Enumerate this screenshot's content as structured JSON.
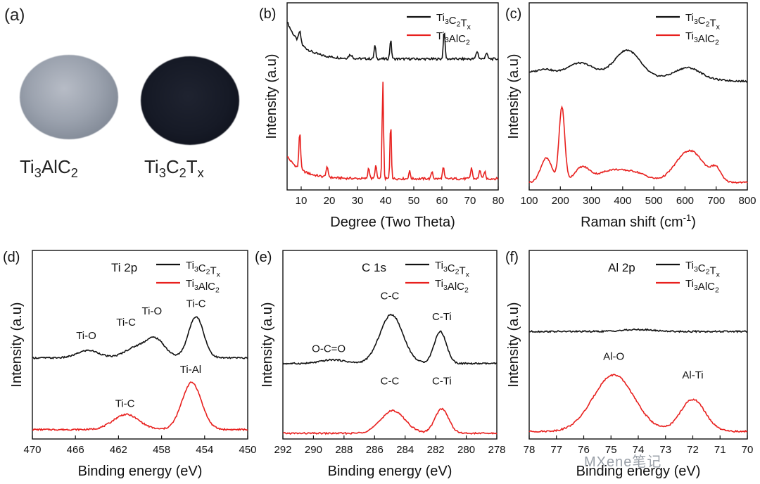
{
  "photo": {
    "letter": "(a)",
    "left_label": "Ti3AlC2",
    "right_label": "Ti3C2Tx"
  },
  "colors": {
    "ti3c2tx": "#111111",
    "ti3alc2": "#e8201e"
  },
  "watermark": "MXene笔记",
  "chart_data": [
    {
      "id": "b",
      "letter": "(b)",
      "type": "line",
      "xlabel": "Degree (Two Theta)",
      "ylabel": "Intensity (a.u)",
      "xlim": [
        5,
        80
      ],
      "xticks": [
        10,
        20,
        30,
        40,
        50,
        60,
        70,
        80
      ],
      "legend": [
        "Ti3C2Tx",
        "Ti3AlC2"
      ],
      "legend_position": "top-right",
      "series": [
        {
          "name": "Ti3C2Tx",
          "color": "#111111",
          "baseline": 0.7,
          "decay": 0.2,
          "peaks": [
            [
              9.5,
              0.06,
              0.4
            ],
            [
              27.5,
              0.02,
              0.6
            ],
            [
              36.2,
              0.07,
              0.3
            ],
            [
              41.8,
              0.1,
              0.3
            ],
            [
              60.8,
              0.15,
              0.3
            ],
            [
              72.5,
              0.04,
              0.4
            ],
            [
              75.8,
              0.03,
              0.4
            ]
          ]
        },
        {
          "name": "Ti3AlC2",
          "color": "#e8201e",
          "baseline": 0.06,
          "decay": 0.12,
          "peaks": [
            [
              9.5,
              0.2,
              0.3
            ],
            [
              19.2,
              0.05,
              0.4
            ],
            [
              34.0,
              0.06,
              0.3
            ],
            [
              36.5,
              0.07,
              0.3
            ],
            [
              39.0,
              0.52,
              0.25
            ],
            [
              41.8,
              0.3,
              0.25
            ],
            [
              48.5,
              0.04,
              0.3
            ],
            [
              56.5,
              0.04,
              0.3
            ],
            [
              60.5,
              0.06,
              0.3
            ],
            [
              70.5,
              0.06,
              0.3
            ],
            [
              73.5,
              0.05,
              0.3
            ],
            [
              75.2,
              0.04,
              0.3
            ]
          ]
        }
      ]
    },
    {
      "id": "c",
      "letter": "(c)",
      "type": "line",
      "xlabel": "Raman shift (cm-1)",
      "ylabel": "Intensity (a.u)",
      "xlim": [
        100,
        800
      ],
      "xticks": [
        100,
        200,
        300,
        400,
        500,
        600,
        700,
        800
      ],
      "legend": [
        "Ti3C2Tx",
        "Ti3AlC2"
      ],
      "legend_position": "top-right",
      "series": [
        {
          "name": "Ti3C2Tx",
          "color": "#111111",
          "baseline": 0.63,
          "slope": -0.05,
          "peaks": [
            [
              150,
              0.02,
              20
            ],
            [
              265,
              0.06,
              40
            ],
            [
              415,
              0.14,
              40
            ],
            [
              610,
              0.06,
              40
            ]
          ]
        },
        {
          "name": "Ti3AlC2",
          "color": "#e8201e",
          "baseline": 0.04,
          "slope": 0.0,
          "peaks": [
            [
              155,
              0.13,
              18
            ],
            [
              205,
              0.4,
              9
            ],
            [
              270,
              0.08,
              25
            ],
            [
              360,
              0.06,
              40
            ],
            [
              440,
              0.05,
              40
            ],
            [
              615,
              0.17,
              45
            ],
            [
              700,
              0.06,
              15
            ]
          ]
        }
      ]
    },
    {
      "id": "d",
      "letter": "(d)",
      "type": "line",
      "reverse_x": true,
      "title": "Ti 2p",
      "xlabel": "Binding energy (eV)",
      "ylabel": "Intensity (a.u)",
      "xlim": [
        470,
        450
      ],
      "xticks": [
        470,
        466,
        462,
        458,
        454,
        450
      ],
      "legend": [
        "Ti3C2Tx",
        "Ti3AlC2"
      ],
      "legend_position": "top-right",
      "series": [
        {
          "name": "Ti3C2Tx",
          "color": "#111111",
          "baseline": 0.43,
          "slope": 0.0,
          "peaks": [
            [
              464.8,
              0.04,
              1.0
            ],
            [
              460.5,
              0.05,
              1.0
            ],
            [
              458.6,
              0.1,
              0.9
            ],
            [
              454.8,
              0.22,
              0.7
            ]
          ]
        },
        {
          "name": "Ti3AlC2",
          "color": "#e8201e",
          "baseline": 0.05,
          "slope": 0.0,
          "peaks": [
            [
              461.3,
              0.08,
              1.2
            ],
            [
              455.2,
              0.25,
              0.9
            ]
          ]
        }
      ],
      "annotations": [
        {
          "text": "Ti-O",
          "x": 465.0,
          "y": 0.53
        },
        {
          "text": "Ti-C",
          "x": 461.3,
          "y": 0.6
        },
        {
          "text": "Ti-O",
          "x": 458.9,
          "y": 0.66
        },
        {
          "text": "Ti-C",
          "x": 454.8,
          "y": 0.7
        },
        {
          "text": "Ti-C",
          "x": 461.4,
          "y": 0.17
        },
        {
          "text": "Ti-Al",
          "x": 455.3,
          "y": 0.35
        }
      ]
    },
    {
      "id": "e",
      "letter": "(e)",
      "type": "line",
      "reverse_x": true,
      "title": "C 1s",
      "xlabel": "Binding energy (eV)",
      "ylabel": "Intensity (a.u)",
      "xlim": [
        292,
        278
      ],
      "xticks": [
        292,
        290,
        288,
        286,
        284,
        282,
        280,
        278
      ],
      "legend": [
        "Ti3C2Tx",
        "Ti3AlC2"
      ],
      "legend_position": "top-right",
      "series": [
        {
          "name": "Ti3C2Tx",
          "color": "#111111",
          "baseline": 0.4,
          "slope": 0.0,
          "peaks": [
            [
              288.7,
              0.02,
              0.8
            ],
            [
              284.9,
              0.26,
              0.75
            ],
            [
              281.7,
              0.17,
              0.4
            ]
          ]
        },
        {
          "name": "Ti3AlC2",
          "color": "#e8201e",
          "baseline": 0.03,
          "slope": 0.0,
          "peaks": [
            [
              284.8,
              0.12,
              0.8
            ],
            [
              281.6,
              0.13,
              0.45
            ]
          ]
        }
      ],
      "annotations": [
        {
          "text": "O-C=O",
          "x": 289.0,
          "y": 0.46
        },
        {
          "text": "C-C",
          "x": 285.0,
          "y": 0.74
        },
        {
          "text": "C-Ti",
          "x": 281.6,
          "y": 0.63
        },
        {
          "text": "C-C",
          "x": 285.0,
          "y": 0.29
        },
        {
          "text": "C-Ti",
          "x": 281.6,
          "y": 0.29
        }
      ]
    },
    {
      "id": "f",
      "letter": "(f)",
      "type": "line",
      "reverse_x": true,
      "title": "Al 2p",
      "xlabel": "Binding energy (eV)",
      "ylabel": "Intensity (a.u)",
      "xlim": [
        78,
        70
      ],
      "xticks": [
        78,
        77,
        76,
        75,
        74,
        73,
        72,
        71,
        70
      ],
      "legend": [
        "Ti3C2Tx",
        "Ti3AlC2"
      ],
      "legend_position": "top-right",
      "series": [
        {
          "name": "Ti3C2Tx",
          "color": "#111111",
          "baseline": 0.57,
          "slope": 0.0,
          "peaks": [
            [
              74.0,
              0.01,
              0.6
            ]
          ]
        },
        {
          "name": "Ti3AlC2",
          "color": "#e8201e",
          "baseline": 0.04,
          "slope": 0.0,
          "peaks": [
            [
              74.9,
              0.3,
              0.75
            ],
            [
              72.0,
              0.17,
              0.45
            ]
          ]
        }
      ],
      "annotations": [
        {
          "text": "Al-O",
          "x": 74.9,
          "y": 0.42
        },
        {
          "text": "Al-Ti",
          "x": 72.0,
          "y": 0.32
        }
      ]
    }
  ]
}
